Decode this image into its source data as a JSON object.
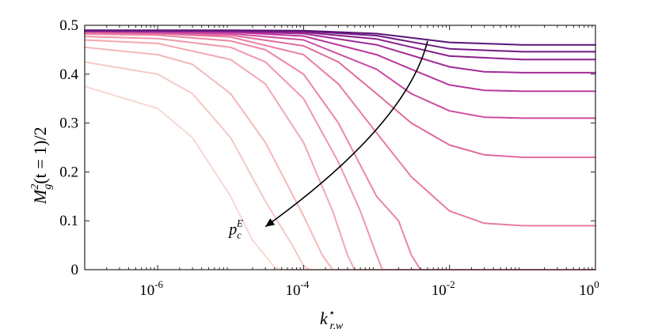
{
  "chart_data": {
    "type": "line",
    "title": "",
    "xlabel": "k",
    "xlabel_sup": "⋆",
    "xlabel_sub": "r,w",
    "ylabel": "M",
    "ylabel_sup": "2",
    "ylabel_sub": "g",
    "ylabel_rest": "(t = 1)/2",
    "x_scale": "log",
    "xlim": [
      1e-07,
      1
    ],
    "ylim": [
      0,
      0.5
    ],
    "grid": false,
    "x_ticks": [
      {
        "value": 1e-06,
        "base": "10",
        "exp": "-6"
      },
      {
        "value": 0.0001,
        "base": "10",
        "exp": "-4"
      },
      {
        "value": 0.01,
        "base": "10",
        "exp": "-2"
      },
      {
        "value": 1,
        "base": "10",
        "exp": "0"
      }
    ],
    "y_ticks": [
      {
        "value": 0,
        "label": "0"
      },
      {
        "value": 0.1,
        "label": "0.1"
      },
      {
        "value": 0.2,
        "label": "0.2"
      },
      {
        "value": 0.3,
        "label": "0.3"
      },
      {
        "value": 0.4,
        "label": "0.4"
      },
      {
        "value": 0.5,
        "label": "0.5"
      }
    ],
    "annotation": {
      "text": "p",
      "sub": "c",
      "sup": "E",
      "arrow_from": [
        0.005,
        0.468
      ],
      "arrow_to": [
        3e-05,
        0.088
      ],
      "arrow_via": [
        0.002,
        0.28
      ]
    },
    "series": [
      {
        "color": "#f7d9d3",
        "x": [
          1e-07,
          1e-06,
          3e-06,
          1e-05,
          2e-05,
          4e-05,
          5e-05,
          1,
          1.0
        ],
        "y": [
          0.375,
          0.33,
          0.27,
          0.15,
          0.06,
          0.005,
          0,
          0,
          0
        ]
      },
      {
        "color": "#f5c8c6",
        "x": [
          1e-07,
          1e-06,
          3e-06,
          1e-05,
          3e-05,
          7e-05,
          0.0001,
          0.00012,
          1
        ],
        "y": [
          0.425,
          0.4,
          0.36,
          0.27,
          0.14,
          0.05,
          0.008,
          0,
          0
        ]
      },
      {
        "color": "#f3b8ba",
        "x": [
          1e-07,
          1e-06,
          3e-06,
          1e-05,
          3e-05,
          0.0001,
          0.00018,
          0.00025,
          1
        ],
        "y": [
          0.455,
          0.44,
          0.42,
          0.36,
          0.26,
          0.11,
          0.03,
          0,
          0
        ]
      },
      {
        "color": "#f2a8b1",
        "x": [
          1e-07,
          1e-06,
          1e-05,
          3e-05,
          0.0001,
          0.00025,
          0.0004,
          0.0005,
          1
        ],
        "y": [
          0.47,
          0.463,
          0.43,
          0.38,
          0.26,
          0.12,
          0.03,
          0,
          0
        ]
      },
      {
        "color": "#f098aa",
        "x": [
          1e-07,
          1e-06,
          1e-05,
          3e-05,
          0.0001,
          0.0003,
          0.0006,
          0.001,
          0.0012,
          1
        ],
        "y": [
          0.477,
          0.473,
          0.455,
          0.425,
          0.35,
          0.22,
          0.12,
          0.03,
          0,
          0
        ]
      },
      {
        "color": "#ec86a4",
        "x": [
          1e-07,
          1e-06,
          1e-05,
          3e-05,
          0.0001,
          0.0003,
          0.001,
          0.002,
          0.003,
          0.004,
          1
        ],
        "y": [
          0.482,
          0.48,
          0.468,
          0.45,
          0.4,
          0.3,
          0.15,
          0.1,
          0.03,
          0,
          0
        ]
      },
      {
        "color": "#e97ca0",
        "x": [
          1e-07,
          1e-06,
          1e-05,
          0.0001,
          0.0003,
          0.001,
          0.003,
          0.01,
          0.03,
          0.1,
          1
        ],
        "y": [
          0.484,
          0.483,
          0.476,
          0.44,
          0.38,
          0.28,
          0.19,
          0.12,
          0.095,
          0.09,
          0.09
        ]
      },
      {
        "color": "#e06a9e",
        "x": [
          1e-07,
          1e-05,
          0.0001,
          0.0003,
          0.001,
          0.003,
          0.01,
          0.03,
          0.1,
          1
        ],
        "y": [
          0.486,
          0.48,
          0.458,
          0.425,
          0.36,
          0.3,
          0.255,
          0.235,
          0.23,
          0.23
        ]
      },
      {
        "color": "#cc4ca0",
        "x": [
          1e-07,
          1e-05,
          0.0001,
          0.001,
          0.003,
          0.01,
          0.03,
          0.1,
          1
        ],
        "y": [
          0.487,
          0.483,
          0.47,
          0.41,
          0.36,
          0.325,
          0.312,
          0.31,
          0.31
        ]
      },
      {
        "color": "#b8389e",
        "x": [
          1e-07,
          1e-05,
          0.0001,
          0.001,
          0.003,
          0.01,
          0.03,
          0.1,
          1
        ],
        "y": [
          0.488,
          0.486,
          0.478,
          0.44,
          0.41,
          0.378,
          0.367,
          0.365,
          0.365
        ]
      },
      {
        "color": "#a22b97",
        "x": [
          1e-07,
          1e-05,
          0.0001,
          0.001,
          0.01,
          0.03,
          0.1,
          1
        ],
        "y": [
          0.488,
          0.487,
          0.483,
          0.46,
          0.415,
          0.405,
          0.403,
          0.403
        ]
      },
      {
        "color": "#8a1f8c",
        "x": [
          1e-07,
          1e-05,
          0.0001,
          0.001,
          0.01,
          0.1,
          1
        ],
        "y": [
          0.489,
          0.488,
          0.486,
          0.472,
          0.437,
          0.43,
          0.43
        ]
      },
      {
        "color": "#721a82",
        "x": [
          1e-07,
          1e-05,
          0.0001,
          0.001,
          0.01,
          0.1,
          1
        ],
        "y": [
          0.489,
          0.489,
          0.488,
          0.479,
          0.452,
          0.446,
          0.446
        ]
      },
      {
        "color": "#5a1478",
        "x": [
          1e-07,
          1e-05,
          0.0001,
          0.001,
          0.01,
          0.1,
          1
        ],
        "y": [
          0.49,
          0.49,
          0.489,
          0.483,
          0.465,
          0.46,
          0.46
        ]
      }
    ]
  }
}
